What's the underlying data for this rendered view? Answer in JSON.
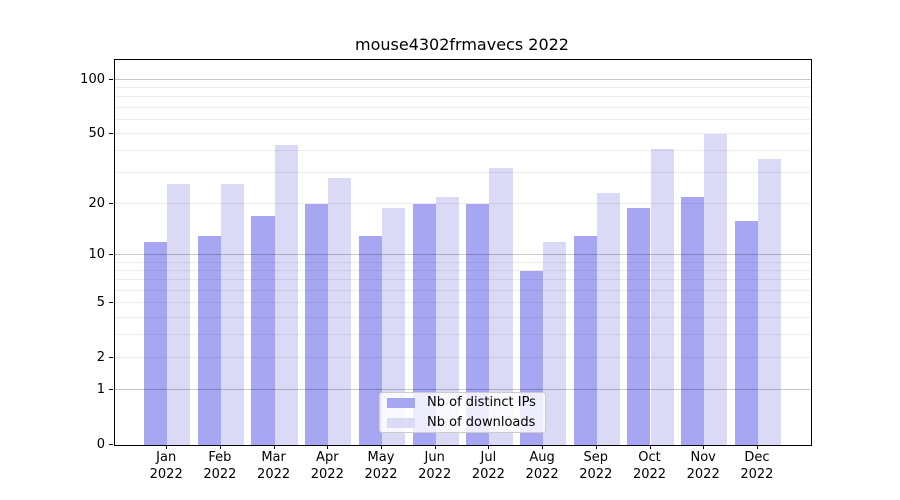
{
  "title": "mouse4302frmavecs 2022",
  "colors": {
    "ips_bar": "#a6a6f2",
    "downloads_bar": "#dadaf7",
    "grid_major": "rgba(0,0,0,0.22)",
    "grid_minor": "rgba(0,0,0,0.07)",
    "axis": "#000000"
  },
  "legend": {
    "items": [
      {
        "label": "Nb of distinct IPs",
        "color": "#a6a6f2"
      },
      {
        "label": "Nb of downloads",
        "color": "#dadaf7"
      }
    ]
  },
  "chart_data": {
    "type": "bar",
    "title": "mouse4302frmavecs 2022",
    "xlabel": "",
    "ylabel": "",
    "scale": "log1p",
    "ylim": [
      0,
      128.5
    ],
    "grid": "horizontal",
    "legend_position": "bottom-center-inside",
    "months": [
      "Jan",
      "Feb",
      "Mar",
      "Apr",
      "May",
      "Jun",
      "Jul",
      "Aug",
      "Sep",
      "Oct",
      "Nov",
      "Dec"
    ],
    "year": "2022",
    "yticks": [
      0,
      1,
      2,
      5,
      10,
      20,
      50,
      100
    ],
    "minor_gridlines": [
      2,
      3,
      4,
      5,
      6,
      7,
      8,
      9,
      20,
      30,
      40,
      50,
      60,
      70,
      80,
      90
    ],
    "major_gridlines": [
      1,
      10,
      100
    ],
    "series": [
      {
        "name": "Nb of distinct IPs",
        "values": [
          12,
          13,
          17,
          20,
          13,
          20,
          20,
          8,
          13,
          19,
          22,
          16
        ],
        "color": "#a6a6f2"
      },
      {
        "name": "Nb of downloads",
        "values": [
          26,
          26,
          43,
          28,
          19,
          22,
          32,
          12,
          23,
          41,
          50,
          36
        ],
        "color": "#dadaf7"
      }
    ]
  }
}
